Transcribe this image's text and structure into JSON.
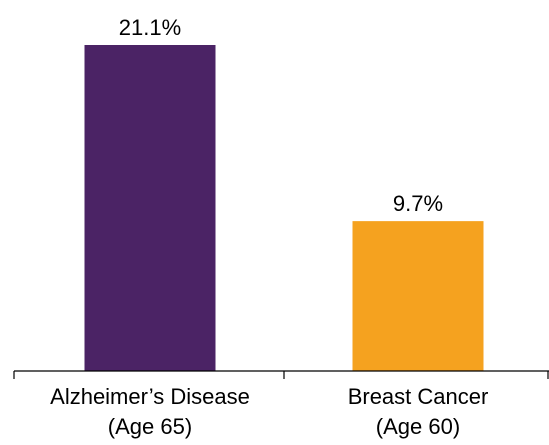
{
  "chart_data": {
    "type": "bar",
    "title": "",
    "xlabel": "",
    "ylabel": "",
    "categories": [
      [
        "Alzheimer’s Disease",
        "(Age 65)"
      ],
      [
        "Breast Cancer",
        "(Age 60)"
      ]
    ],
    "values": [
      21.1,
      9.7
    ],
    "value_labels": [
      "21.1%",
      "9.7%"
    ],
    "colors": [
      "#4B2365",
      "#F5A21F"
    ],
    "unit": "%",
    "ylim": [
      0,
      21.1
    ],
    "grid": false,
    "legend": "none"
  }
}
